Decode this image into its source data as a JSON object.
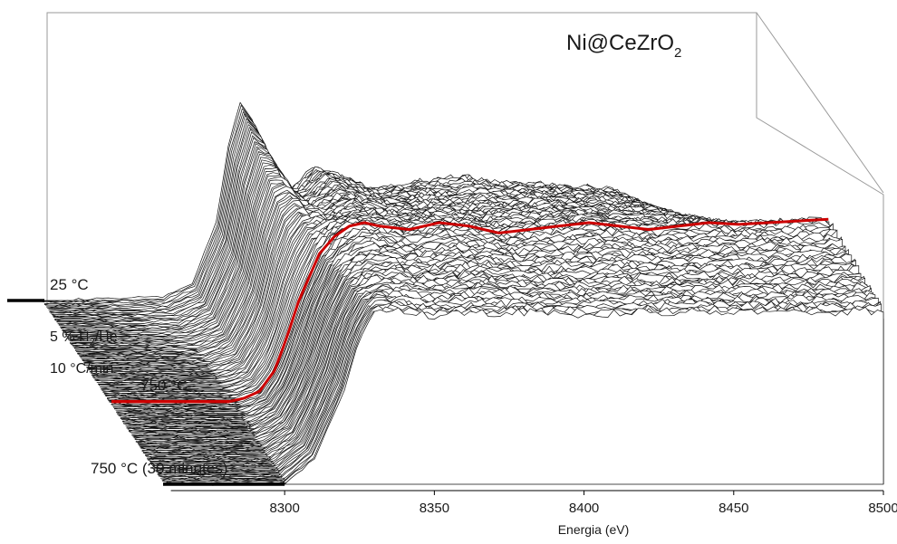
{
  "chart_data": {
    "type": "line",
    "subtype": "3d-waterfall",
    "title": "Ni@CeZrO",
    "title_subscript": "2",
    "xlabel": "Energia (eV)",
    "ylabel": "",
    "xlim": [
      8260,
      8500
    ],
    "xticks": [
      "8300",
      "8350",
      "8400",
      "8450",
      "8500"
    ],
    "grid": false,
    "stack_direction": "from 25 °C (back) to 750 °C (30 minutes) (front)",
    "stages": [
      {
        "label": "25 °C",
        "marker_color": "#000000"
      },
      {
        "label": "750 °C",
        "marker_color": "#cc0000"
      },
      {
        "label": "750 °C (30 minutes)",
        "marker_color": "#000000"
      }
    ],
    "ramp_condition": {
      "gas_prefix": "5 % H",
      "gas_subscript": "2",
      "gas_suffix": "/He",
      "rate": "10 °C/min"
    },
    "series": [
      {
        "name": "25 °C",
        "color": "#000000",
        "x": [
          8260,
          8300,
          8310,
          8318,
          8322,
          8326,
          8330,
          8335,
          8340,
          8345,
          8350,
          8360,
          8370,
          8380,
          8390,
          8400,
          8410,
          8420,
          8430,
          8440,
          8450,
          8460,
          8470,
          8480,
          8490,
          8500
        ],
        "y": [
          0.0,
          0.02,
          0.1,
          0.45,
          0.9,
          1.15,
          1.05,
          0.8,
          0.62,
          0.68,
          0.78,
          0.72,
          0.64,
          0.68,
          0.7,
          0.72,
          0.69,
          0.68,
          0.67,
          0.66,
          0.64,
          0.55,
          0.45,
          0.38,
          0.3,
          0.2
        ]
      },
      {
        "name": "750 °C",
        "color": "#cc0000",
        "x": [
          8300,
          8305,
          8310,
          8315,
          8318,
          8320,
          8323,
          8326,
          8330,
          8335,
          8340,
          8345,
          8350,
          8360,
          8370,
          8380,
          8390,
          8400,
          8410,
          8420,
          8430,
          8440,
          8450,
          8460,
          8470,
          8480,
          8490,
          8500
        ],
        "y": [
          0.0,
          0.02,
          0.06,
          0.18,
          0.32,
          0.42,
          0.58,
          0.7,
          0.86,
          0.96,
          1.02,
          1.04,
          1.02,
          1.0,
          1.04,
          1.02,
          0.98,
          1.0,
          1.02,
          1.04,
          1.02,
          1.0,
          1.02,
          1.04,
          1.03,
          1.04,
          1.05,
          1.06
        ]
      },
      {
        "name": "750 °C (30 minutes)",
        "color": "#000000",
        "x": [
          8260,
          8300,
          8310,
          8320,
          8325,
          8330,
          8335,
          8340,
          8350,
          8360,
          8380,
          8400,
          8420,
          8440,
          8460,
          8480,
          8500
        ],
        "y": [
          0.0,
          0.0,
          0.15,
          0.55,
          0.85,
          1.0,
          1.02,
          1.0,
          0.98,
          0.99,
          1.0,
          0.99,
          1.0,
          1.01,
          1.0,
          1.0,
          1.01
        ]
      }
    ]
  }
}
